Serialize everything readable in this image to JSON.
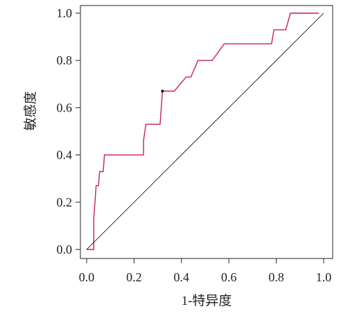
{
  "chart_data": {
    "type": "line",
    "title": "",
    "xlabel": "1-特异度",
    "ylabel": "敏感度",
    "xlim": [
      0.0,
      1.0
    ],
    "ylim": [
      0.0,
      1.0
    ],
    "x_tick_labels": [
      "0.0",
      "0.2",
      "0.4",
      "0.6",
      "0.8",
      "1.0"
    ],
    "y_tick_labels": [
      "0.0",
      "0.2",
      "0.4",
      "0.6",
      "0.8",
      "1.0"
    ],
    "grid": false,
    "legend": "none",
    "series": [
      {
        "color": "#cc1f4e",
        "points": [
          [
            0.0,
            0.0
          ],
          [
            0.03,
            0.0
          ],
          [
            0.03,
            0.13
          ],
          [
            0.035,
            0.2
          ],
          [
            0.04,
            0.27
          ],
          [
            0.05,
            0.27
          ],
          [
            0.055,
            0.33
          ],
          [
            0.07,
            0.33
          ],
          [
            0.075,
            0.4
          ],
          [
            0.24,
            0.4
          ],
          [
            0.24,
            0.46
          ],
          [
            0.25,
            0.53
          ],
          [
            0.31,
            0.53
          ],
          [
            0.32,
            0.67
          ],
          [
            0.37,
            0.67
          ],
          [
            0.42,
            0.73
          ],
          [
            0.44,
            0.73
          ],
          [
            0.47,
            0.8
          ],
          [
            0.53,
            0.8
          ],
          [
            0.58,
            0.87
          ],
          [
            0.78,
            0.87
          ],
          [
            0.79,
            0.93
          ],
          [
            0.84,
            0.93
          ],
          [
            0.86,
            1.0
          ],
          [
            0.98,
            1.0
          ]
        ]
      },
      {
        "color": "#000000",
        "points": [
          [
            0.0,
            0.0
          ],
          [
            1.0,
            1.0
          ]
        ]
      }
    ],
    "highlight_point": {
      "x": 0.32,
      "y": 0.67,
      "color": "#000000"
    }
  }
}
